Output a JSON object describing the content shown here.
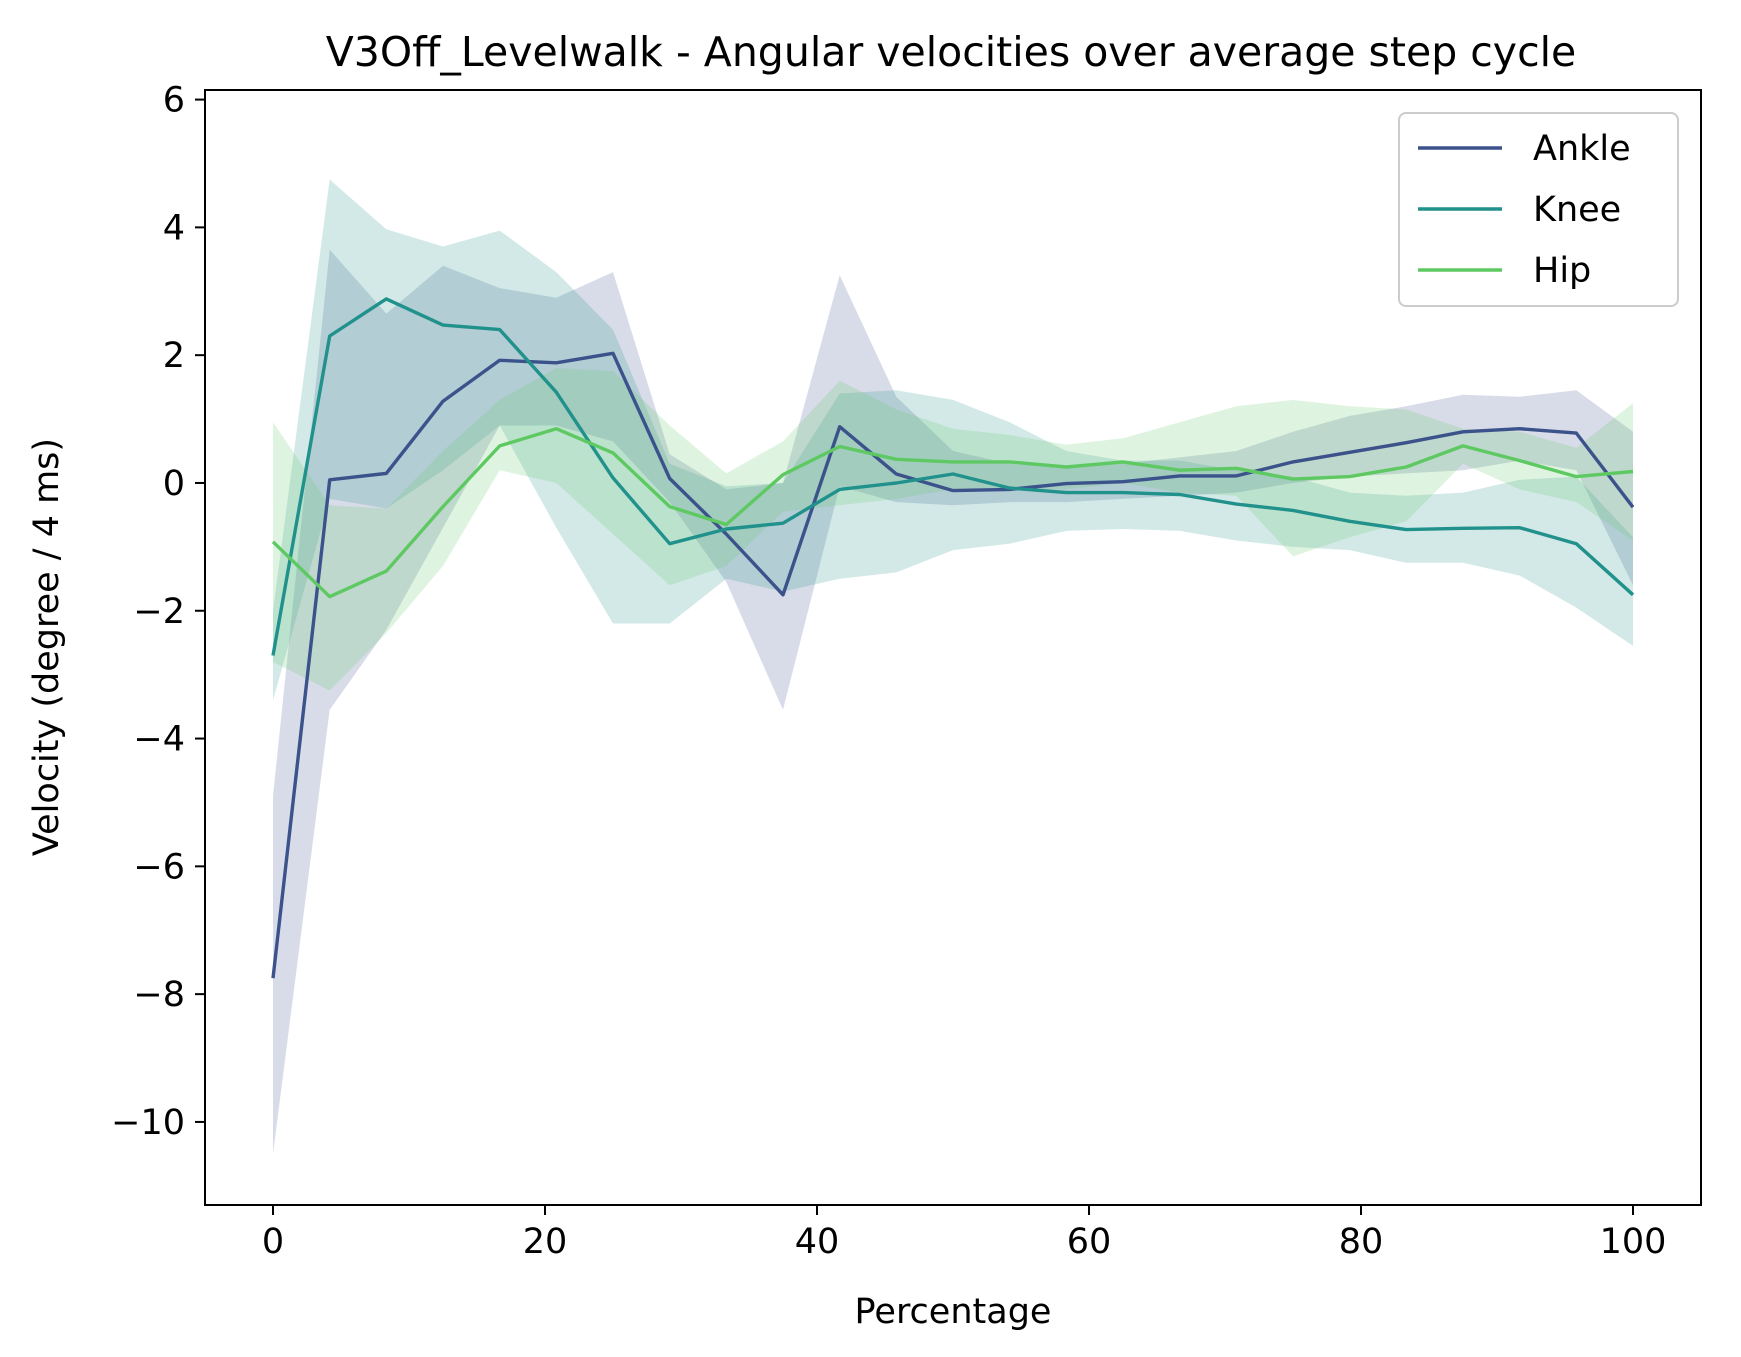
{
  "chart_data": {
    "type": "line",
    "title": "V3Off_Levelwalk - Angular velocities over average step cycle",
    "xlabel": "Percentage",
    "ylabel": "Velocity (degree / 4 ms)",
    "xlim": [
      -5,
      105
    ],
    "ylim": [
      -11.3,
      6.15
    ],
    "xticks": [
      0,
      20,
      40,
      60,
      80,
      100
    ],
    "yticks": [
      -10,
      -8,
      -6,
      -4,
      -2,
      0,
      2,
      4,
      6
    ],
    "xtick_labels": [
      "0",
      "20",
      "40",
      "60",
      "80",
      "100"
    ],
    "ytick_labels": [
      "−10",
      "−8",
      "−6",
      "−4",
      "−2",
      "0",
      "2",
      "4",
      "6"
    ],
    "grid": false,
    "legend_position": "top-right",
    "x": [
      0,
      4.17,
      8.33,
      12.5,
      16.67,
      20.83,
      25,
      29.17,
      33.33,
      37.5,
      41.67,
      45.83,
      50,
      54.17,
      58.33,
      62.5,
      66.67,
      70.83,
      75,
      79.17,
      83.33,
      87.5,
      91.67,
      95.83,
      100
    ],
    "series": [
      {
        "name": "Ankle",
        "color": "#3b528b",
        "values": [
          -7.75,
          0.05,
          0.15,
          1.28,
          1.92,
          1.88,
          2.03,
          0.07,
          -0.8,
          -1.75,
          0.88,
          0.14,
          -0.12,
          -0.1,
          -0.01,
          0.02,
          0.11,
          0.11,
          0.33,
          0.48,
          0.63,
          0.8,
          0.85,
          0.78,
          -0.38
        ],
        "lower": [
          -10.5,
          -3.55,
          -2.3,
          -0.7,
          0.9,
          0.9,
          0.65,
          -0.3,
          -1.55,
          -3.55,
          -0.05,
          -0.3,
          -0.35,
          -0.3,
          -0.3,
          -0.25,
          -0.2,
          -0.15,
          0.0,
          0.1,
          0.15,
          0.2,
          0.35,
          0.2,
          -1.6
        ],
        "upper": [
          -4.9,
          3.65,
          2.65,
          3.4,
          3.05,
          2.9,
          3.3,
          0.45,
          -0.1,
          0.0,
          3.25,
          1.35,
          0.5,
          0.3,
          0.25,
          0.3,
          0.4,
          0.5,
          0.8,
          1.05,
          1.2,
          1.38,
          1.35,
          1.45,
          0.8
        ]
      },
      {
        "name": "Knee",
        "color": "#21918c",
        "values": [
          -2.7,
          2.3,
          2.88,
          2.47,
          2.4,
          1.42,
          0.08,
          -0.95,
          -0.72,
          -0.63,
          -0.1,
          0.0,
          0.14,
          -0.08,
          -0.15,
          -0.15,
          -0.18,
          -0.33,
          -0.43,
          -0.6,
          -0.73,
          -0.71,
          -0.7,
          -0.95,
          -1.75
        ],
        "lower": [
          -3.4,
          -0.25,
          -0.4,
          0.2,
          0.9,
          -0.7,
          -2.2,
          -2.2,
          -1.5,
          -1.7,
          -1.5,
          -1.4,
          -1.05,
          -0.95,
          -0.75,
          -0.72,
          -0.75,
          -0.9,
          -1.0,
          -1.05,
          -1.25,
          -1.25,
          -1.45,
          -1.95,
          -2.55
        ],
        "upper": [
          -2.0,
          4.75,
          3.97,
          3.7,
          3.95,
          3.3,
          2.4,
          0.3,
          -0.05,
          0.0,
          1.4,
          1.45,
          1.3,
          0.95,
          0.5,
          0.35,
          0.35,
          0.2,
          0.1,
          -0.15,
          -0.2,
          -0.15,
          0.05,
          0.1,
          -0.85
        ]
      },
      {
        "name": "Hip",
        "color": "#5ec962",
        "values": [
          -0.92,
          -1.78,
          -1.38,
          -0.37,
          0.58,
          0.85,
          0.47,
          -0.37,
          -0.65,
          0.13,
          0.57,
          0.37,
          0.33,
          0.33,
          0.25,
          0.33,
          0.2,
          0.23,
          0.06,
          0.1,
          0.25,
          0.58,
          0.35,
          0.1,
          0.18
        ],
        "lower": [
          -2.8,
          -3.25,
          -2.35,
          -1.3,
          0.2,
          0.0,
          -0.8,
          -1.6,
          -1.3,
          -0.45,
          -0.35,
          -0.25,
          -0.1,
          -0.1,
          -0.1,
          0.0,
          -0.15,
          -0.2,
          -1.15,
          -0.85,
          -0.6,
          0.3,
          -0.1,
          -0.3,
          -0.9
        ],
        "upper": [
          0.95,
          -0.35,
          -0.4,
          0.5,
          1.3,
          1.8,
          1.75,
          0.9,
          0.15,
          0.65,
          1.6,
          1.15,
          0.85,
          0.75,
          0.6,
          0.7,
          0.95,
          1.2,
          1.3,
          1.2,
          1.15,
          0.85,
          0.8,
          0.55,
          1.25
        ]
      }
    ]
  }
}
